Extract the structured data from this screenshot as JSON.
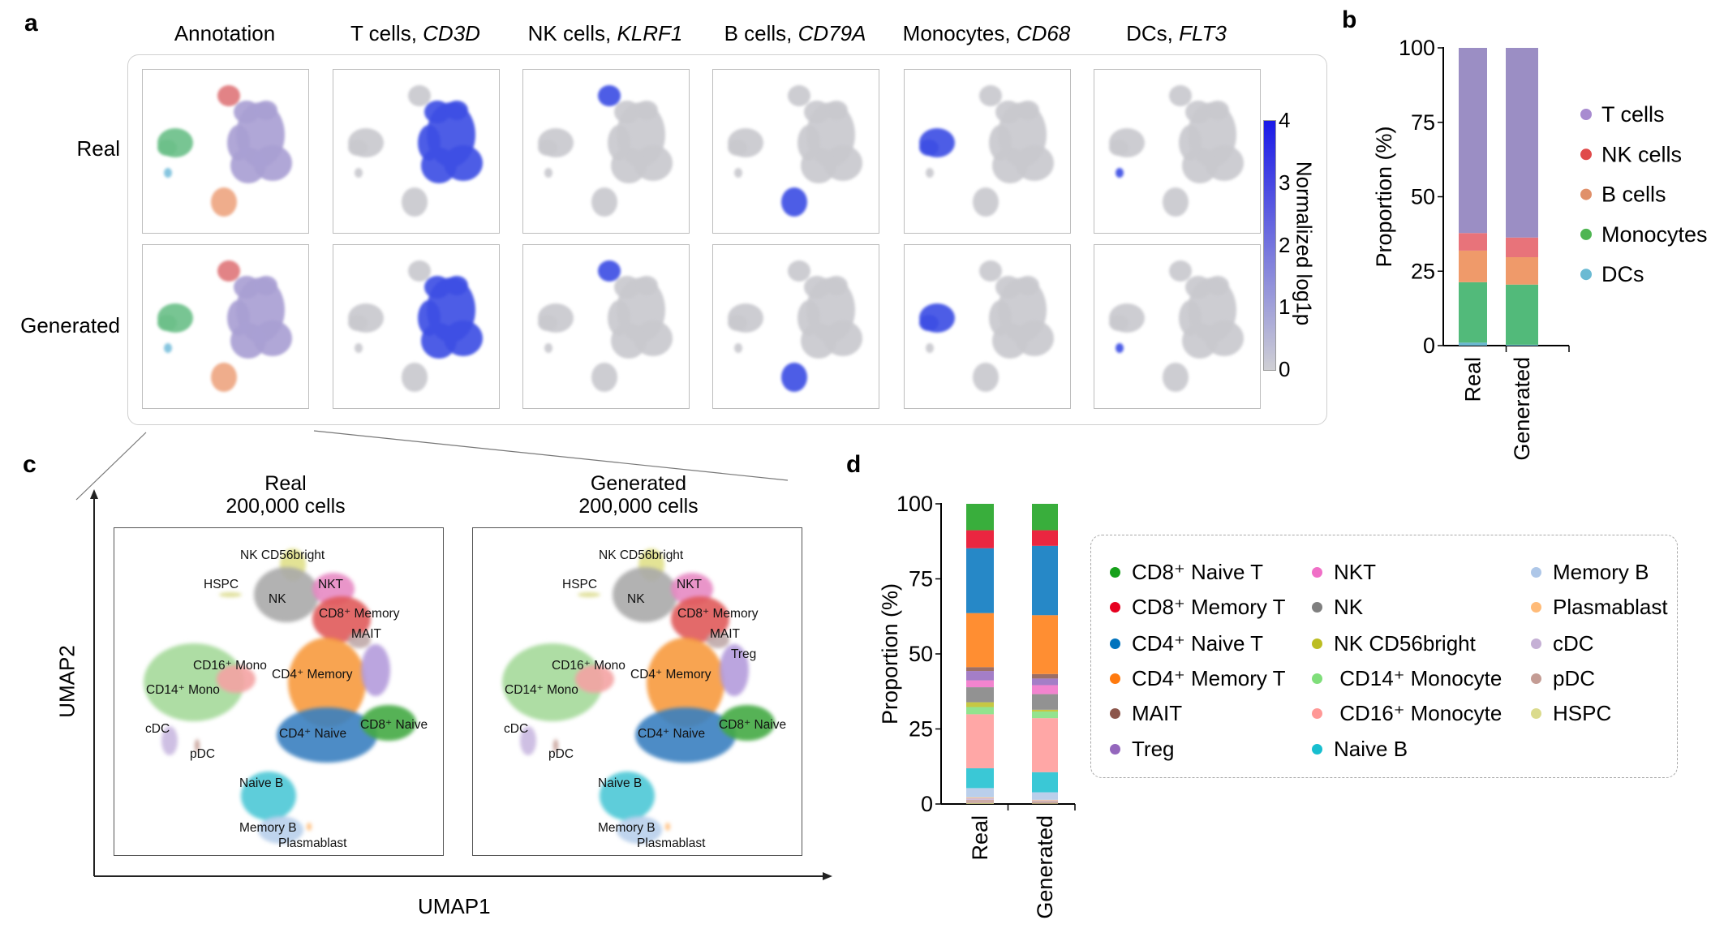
{
  "panel_a": {
    "label": "a",
    "columns": [
      {
        "title": "Annotation",
        "gene": "",
        "highlight": "annotation"
      },
      {
        "title": "T cells, ",
        "gene": "CD3D",
        "highlight": "T cells"
      },
      {
        "title": "NK cells, ",
        "gene": "KLRF1",
        "highlight": "NK cells"
      },
      {
        "title": "B cells, ",
        "gene": "CD79A",
        "highlight": "B cells"
      },
      {
        "title": "Monocytes, ",
        "gene": "CD68",
        "highlight": "Monocytes"
      },
      {
        "title": "DCs, ",
        "gene": "FLT3",
        "highlight": "DCs"
      }
    ],
    "rows": [
      "Real",
      "Generated"
    ],
    "colorbar": {
      "label": "Normalized log1p",
      "ticks": [
        "0",
        "1",
        "2",
        "3",
        "4"
      ],
      "low_color": "#cfcfd4",
      "high_color": "#1a1ae8"
    }
  },
  "panel_b": {
    "label": "b",
    "chart_data": {
      "type": "bar",
      "stacked": true,
      "ylabel": "Proportion (%)",
      "ylim": [
        0,
        100
      ],
      "yticks": [
        "0",
        "25",
        "50",
        "75",
        "100"
      ],
      "categories": [
        "Real",
        "Generated"
      ],
      "legend_position": "right",
      "series": [
        {
          "name": "T cells",
          "color": "#9b8ec4",
          "dot": "#a88bd0",
          "values": [
            62.2,
            63.7
          ]
        },
        {
          "name": "NK cells",
          "color": "#e8737a",
          "dot": "#e04b4b",
          "values": [
            5.9,
            6.6
          ]
        },
        {
          "name": "B cells",
          "color": "#ef9a6a",
          "dot": "#e0906a",
          "values": [
            10.6,
            9.2
          ]
        },
        {
          "name": "Monocytes",
          "color": "#52ba7a",
          "dot": "#4fb552",
          "values": [
            20.3,
            20.2
          ]
        },
        {
          "name": "DCs",
          "color": "#6ab8d0",
          "dot": "#6bbad3",
          "values": [
            1.0,
            0.3
          ]
        }
      ]
    }
  },
  "panel_c": {
    "label": "c",
    "xlabel": "UMAP1",
    "ylabel": "UMAP2",
    "plots": [
      {
        "title": "Real",
        "subtitle": "200,000 cells"
      },
      {
        "title": "Generated",
        "subtitle": "200,000 cells"
      }
    ],
    "cluster_labels_real": [
      "NK CD56bright",
      "HSPC",
      "NKT",
      "NK",
      "CD8⁺ Memory",
      "MAIT",
      "CD16⁺ Mono",
      "CD4⁺ Memory",
      "CD14⁺ Mono",
      "CD8⁺ Naive",
      "CD4⁺ Naive",
      "cDC",
      "pDC",
      "Naive B",
      "Memory B",
      "Plasmablast"
    ],
    "cluster_labels_generated": [
      "NK CD56bright",
      "HSPC",
      "NKT",
      "NK",
      "CD8⁺ Memory",
      "Treg",
      "CD16⁺ Mono",
      "CD4⁺ Memory",
      "CD14⁺ Mono",
      "CD8⁺ Naive",
      "CD4⁺ Naive",
      "cDC",
      "pDC",
      "Naive B",
      "Memory B",
      "Plasmablast",
      "MAIT"
    ]
  },
  "panel_d": {
    "label": "d",
    "chart_data": {
      "type": "bar",
      "stacked": true,
      "ylabel": "Proportion (%)",
      "ylim": [
        0,
        100
      ],
      "yticks": [
        "0",
        "25",
        "50",
        "75",
        "100"
      ],
      "categories": [
        "Real",
        "Generated"
      ],
      "legend_position": "right",
      "series": [
        {
          "name": "CD8⁺ Naive T",
          "color": "#16a01a",
          "values": [
            8.8,
            8.8
          ]
        },
        {
          "name": "CD8⁺ Memory T",
          "color": "#e6001f",
          "values": [
            6.0,
            5.2
          ]
        },
        {
          "name": "CD4⁺ Naive T",
          "color": "#0073bd",
          "values": [
            21.6,
            23.1
          ]
        },
        {
          "name": "CD4⁺ Memory T",
          "color": "#ff7a0e",
          "values": [
            18.0,
            19.6
          ]
        },
        {
          "name": "MAIT",
          "color": "#8c564b",
          "values": [
            1.3,
            1.5
          ]
        },
        {
          "name": "Treg",
          "color": "#9467bd",
          "values": [
            3.1,
            2.2
          ]
        },
        {
          "name": "NKT",
          "color": "#f06fc7",
          "values": [
            2.3,
            3.0
          ]
        },
        {
          "name": "NK",
          "color": "#7f7f7f",
          "values": [
            5.0,
            5.2
          ]
        },
        {
          "name": "NK CD56bright",
          "color": "#bcbd22",
          "values": [
            1.6,
            0.6
          ]
        },
        {
          "name": " CD14⁺ Monocyte",
          "color": "#7fde7a",
          "values": [
            2.4,
            2.2
          ]
        },
        {
          "name": " CD16⁺ Monocyte",
          "color": "#ff9896",
          "values": [
            18.0,
            18.0
          ]
        },
        {
          "name": "Naive B",
          "color": "#17becf",
          "values": [
            6.6,
            6.7
          ]
        },
        {
          "name": "Memory B",
          "color": "#aec7e8",
          "values": [
            3.1,
            2.5
          ]
        },
        {
          "name": "Plasmablast",
          "color": "#ffbb78",
          "values": [
            0.3,
            0.2
          ]
        },
        {
          "name": "cDC",
          "color": "#c5b0d5",
          "values": [
            0.5,
            0.2
          ]
        },
        {
          "name": "pDC",
          "color": "#c49c94",
          "values": [
            1.1,
            0.8
          ]
        },
        {
          "name": "HSPC",
          "color": "#dbdb8d",
          "values": [
            0.3,
            0.2
          ]
        }
      ]
    }
  }
}
